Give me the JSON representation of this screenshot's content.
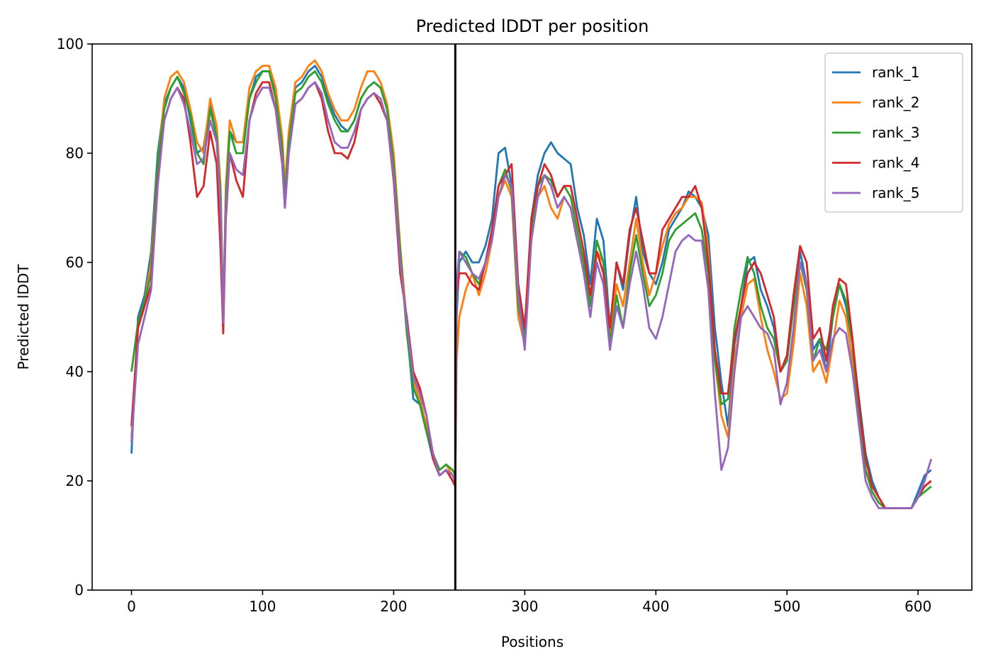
{
  "chart_data": {
    "type": "line",
    "title": "Predicted lDDT per position",
    "xlabel": "Positions",
    "ylabel": "Predicted lDDT",
    "xlim": [
      -30,
      641
    ],
    "ylim": [
      0,
      100
    ],
    "xticks": [
      0,
      100,
      200,
      300,
      400,
      500,
      600
    ],
    "yticks": [
      0,
      20,
      40,
      60,
      80,
      100
    ],
    "grid": false,
    "legend_position": "top-right",
    "vline": 247,
    "x": [
      0,
      5,
      10,
      15,
      20,
      25,
      30,
      35,
      40,
      45,
      50,
      55,
      60,
      65,
      68,
      70,
      72,
      75,
      80,
      85,
      90,
      95,
      100,
      105,
      110,
      115,
      117,
      120,
      125,
      130,
      135,
      140,
      145,
      150,
      155,
      160,
      165,
      170,
      175,
      180,
      185,
      190,
      195,
      200,
      205,
      210,
      215,
      220,
      225,
      230,
      235,
      240,
      245,
      247,
      248,
      250,
      255,
      260,
      265,
      270,
      275,
      280,
      285,
      290,
      295,
      300,
      305,
      310,
      315,
      320,
      325,
      330,
      335,
      340,
      345,
      350,
      355,
      360,
      365,
      370,
      375,
      380,
      385,
      390,
      395,
      400,
      405,
      410,
      415,
      420,
      425,
      430,
      435,
      440,
      445,
      450,
      455,
      460,
      465,
      470,
      475,
      480,
      485,
      490,
      495,
      500,
      505,
      510,
      515,
      520,
      525,
      530,
      535,
      540,
      545,
      550,
      555,
      560,
      565,
      570,
      575,
      580,
      585,
      590,
      595,
      600,
      605,
      610
    ],
    "series": [
      {
        "name": "rank_1",
        "color": "#1f77b4",
        "values": [
          25,
          50,
          54,
          62,
          80,
          89,
          92,
          94,
          92,
          86,
          80,
          81,
          89,
          83,
          72,
          48,
          72,
          84,
          82,
          82,
          90,
          94,
          95,
          95,
          91,
          82,
          73,
          82,
          92,
          93,
          95,
          96,
          94,
          90,
          87,
          85,
          84,
          86,
          90,
          92,
          93,
          92,
          88,
          79,
          62,
          48,
          35,
          34,
          29,
          24,
          21,
          22,
          20,
          20,
          50,
          60,
          62,
          60,
          60,
          63,
          68,
          80,
          81,
          74,
          55,
          46,
          68,
          76,
          80,
          82,
          80,
          79,
          78,
          70,
          65,
          56,
          68,
          64,
          48,
          60,
          55,
          65,
          72,
          62,
          58,
          56,
          60,
          66,
          68,
          70,
          73,
          72,
          70,
          65,
          48,
          38,
          30,
          45,
          52,
          60,
          61,
          55,
          52,
          48,
          40,
          42,
          52,
          62,
          56,
          44,
          46,
          40,
          50,
          56,
          52,
          45,
          35,
          25,
          20,
          17,
          15,
          15,
          15,
          15,
          15,
          18,
          21,
          22
        ]
      },
      {
        "name": "rank_2",
        "color": "#ff7f0e",
        "values": [
          28,
          48,
          53,
          60,
          78,
          90,
          94,
          95,
          93,
          88,
          82,
          80,
          90,
          85,
          74,
          50,
          74,
          86,
          82,
          82,
          92,
          95,
          96,
          96,
          92,
          83,
          74,
          84,
          93,
          94,
          96,
          97,
          95,
          91,
          88,
          86,
          86,
          88,
          92,
          95,
          95,
          93,
          89,
          80,
          63,
          49,
          38,
          35,
          30,
          25,
          22,
          23,
          21,
          20,
          42,
          50,
          55,
          58,
          54,
          58,
          64,
          72,
          75,
          72,
          50,
          45,
          65,
          72,
          74,
          70,
          68,
          72,
          70,
          64,
          60,
          52,
          62,
          60,
          46,
          56,
          52,
          60,
          68,
          60,
          54,
          58,
          63,
          67,
          69,
          70,
          72,
          72,
          71,
          62,
          42,
          32,
          28,
          42,
          50,
          56,
          57,
          50,
          44,
          40,
          35,
          36,
          45,
          58,
          52,
          40,
          42,
          38,
          45,
          53,
          50,
          42,
          30,
          22,
          18,
          16,
          15,
          15,
          15,
          15,
          15,
          17,
          19,
          20
        ]
      },
      {
        "name": "rank_3",
        "color": "#2ca02c",
        "values": [
          40,
          49,
          53,
          58,
          78,
          88,
          92,
          94,
          91,
          87,
          80,
          78,
          88,
          83,
          72,
          49,
          72,
          84,
          80,
          80,
          90,
          93,
          95,
          95,
          90,
          81,
          72,
          82,
          91,
          92,
          94,
          95,
          93,
          89,
          86,
          84,
          84,
          86,
          90,
          92,
          93,
          92,
          88,
          78,
          62,
          47,
          37,
          34,
          29,
          25,
          22,
          23,
          22,
          21,
          52,
          62,
          61,
          58,
          56,
          60,
          66,
          74,
          77,
          73,
          52,
          46,
          66,
          74,
          76,
          75,
          72,
          74,
          72,
          66,
          60,
          52,
          64,
          60,
          45,
          54,
          48,
          58,
          65,
          58,
          52,
          54,
          58,
          64,
          66,
          67,
          68,
          69,
          66,
          58,
          42,
          34,
          35,
          48,
          55,
          61,
          58,
          52,
          48,
          46,
          40,
          42,
          52,
          60,
          55,
          42,
          46,
          44,
          50,
          56,
          53,
          45,
          32,
          22,
          18,
          16,
          15,
          15,
          15,
          15,
          15,
          17,
          18,
          19
        ]
      },
      {
        "name": "rank_4",
        "color": "#d62728",
        "values": [
          30,
          48,
          52,
          56,
          75,
          86,
          90,
          92,
          90,
          82,
          72,
          74,
          84,
          78,
          62,
          47,
          68,
          80,
          75,
          72,
          86,
          91,
          93,
          93,
          88,
          78,
          70,
          80,
          89,
          90,
          92,
          93,
          90,
          84,
          80,
          80,
          79,
          82,
          88,
          90,
          91,
          89,
          86,
          75,
          58,
          50,
          40,
          37,
          32,
          24,
          21,
          22,
          20,
          19,
          54,
          58,
          58,
          56,
          55,
          60,
          66,
          74,
          76,
          78,
          56,
          48,
          68,
          74,
          78,
          76,
          72,
          74,
          74,
          68,
          62,
          54,
          62,
          58,
          48,
          60,
          56,
          66,
          70,
          64,
          58,
          58,
          66,
          68,
          70,
          72,
          72,
          74,
          70,
          60,
          44,
          36,
          36,
          46,
          52,
          58,
          60,
          58,
          54,
          50,
          40,
          43,
          54,
          63,
          60,
          46,
          48,
          42,
          52,
          57,
          56,
          46,
          34,
          24,
          19,
          17,
          15,
          15,
          15,
          15,
          15,
          17,
          19,
          20
        ]
      },
      {
        "name": "rank_5",
        "color": "#9467bd",
        "values": [
          27,
          45,
          50,
          55,
          74,
          86,
          90,
          92,
          89,
          84,
          78,
          79,
          86,
          82,
          70,
          49,
          70,
          80,
          77,
          76,
          86,
          90,
          92,
          92,
          88,
          79,
          70,
          80,
          89,
          90,
          92,
          93,
          91,
          86,
          82,
          81,
          81,
          84,
          88,
          90,
          91,
          90,
          86,
          76,
          60,
          49,
          39,
          36,
          32,
          25,
          21,
          22,
          21,
          20,
          56,
          62,
          60,
          58,
          57,
          60,
          64,
          72,
          76,
          74,
          54,
          44,
          64,
          72,
          76,
          74,
          70,
          72,
          70,
          64,
          58,
          50,
          60,
          56,
          44,
          52,
          48,
          56,
          62,
          56,
          48,
          46,
          50,
          56,
          62,
          64,
          65,
          64,
          64,
          55,
          36,
          22,
          26,
          40,
          50,
          52,
          50,
          48,
          47,
          44,
          34,
          38,
          48,
          60,
          56,
          42,
          44,
          40,
          46,
          48,
          47,
          40,
          30,
          20,
          17,
          15,
          15,
          15,
          15,
          15,
          15,
          17,
          20,
          24
        ]
      }
    ]
  }
}
